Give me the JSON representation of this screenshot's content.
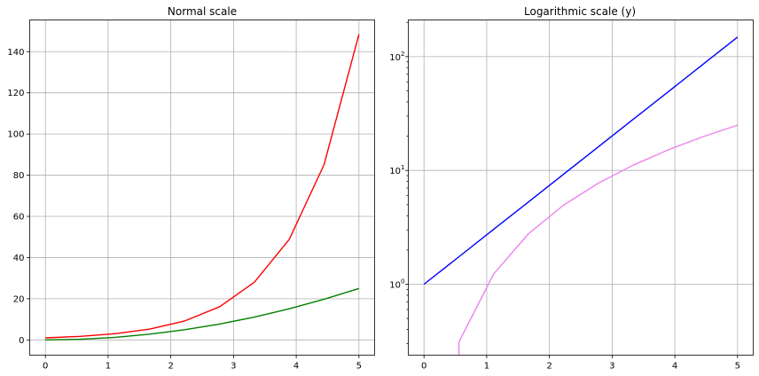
{
  "chart_data": [
    {
      "type": "line",
      "title": "Normal scale",
      "xlabel": "",
      "ylabel": "",
      "xlim": [
        -0.25,
        5.25
      ],
      "ylim": [
        -7.4,
        155.4
      ],
      "x_ticks": [
        0,
        1,
        2,
        3,
        4,
        5
      ],
      "x_tick_labels": [
        "0",
        "1",
        "2",
        "3",
        "4",
        "5"
      ],
      "y_ticks": [
        0,
        20,
        40,
        60,
        80,
        100,
        120,
        140
      ],
      "y_tick_labels": [
        "0",
        "20",
        "40",
        "60",
        "80",
        "100",
        "120",
        "140"
      ],
      "grid": true,
      "yscale": "linear",
      "series": [
        {
          "color": "#ff0000",
          "x": [
            0,
            0.556,
            1.111,
            1.667,
            2.222,
            2.778,
            3.333,
            3.889,
            4.444,
            5
          ],
          "y": [
            1.0,
            1.74,
            3.04,
            5.29,
            9.23,
            16.09,
            28.03,
            48.85,
            85.15,
            148.41
          ]
        },
        {
          "color": "#008000",
          "x": [
            0,
            0.556,
            1.111,
            1.667,
            2.222,
            2.778,
            3.333,
            3.889,
            4.444,
            5
          ],
          "y": [
            0.0,
            0.31,
            1.23,
            2.78,
            4.94,
            7.72,
            11.11,
            15.12,
            19.75,
            25.0
          ]
        }
      ]
    },
    {
      "type": "line",
      "title": "Logarithmic scale (y)",
      "xlabel": "",
      "ylabel": "",
      "xlim": [
        -0.25,
        5.25
      ],
      "ylim": [
        0.238,
        210
      ],
      "x_ticks": [
        0,
        1,
        2,
        3,
        4,
        5
      ],
      "x_tick_labels": [
        "0",
        "1",
        "2",
        "3",
        "4",
        "5"
      ],
      "y_ticks": [
        1,
        10,
        100
      ],
      "y_tick_labels": [
        {
          "base": "10",
          "exp": "0"
        },
        {
          "base": "10",
          "exp": "1"
        },
        {
          "base": "10",
          "exp": "2"
        }
      ],
      "grid": true,
      "yscale": "log",
      "series": [
        {
          "color": "#0000ff",
          "x": [
            0,
            0.556,
            1.111,
            1.667,
            2.222,
            2.778,
            3.333,
            3.889,
            4.444,
            5
          ],
          "y": [
            1.0,
            1.74,
            3.04,
            5.29,
            9.23,
            16.09,
            28.03,
            48.85,
            85.15,
            148.41
          ]
        },
        {
          "color": "#ee82ee",
          "x": [
            0.556,
            0.556,
            1.111,
            1.667,
            2.222,
            2.778,
            3.333,
            3.889,
            4.444,
            5
          ],
          "y": [
            0.238,
            0.31,
            1.23,
            2.78,
            4.94,
            7.72,
            11.11,
            15.12,
            19.75,
            25.0
          ]
        }
      ]
    }
  ]
}
